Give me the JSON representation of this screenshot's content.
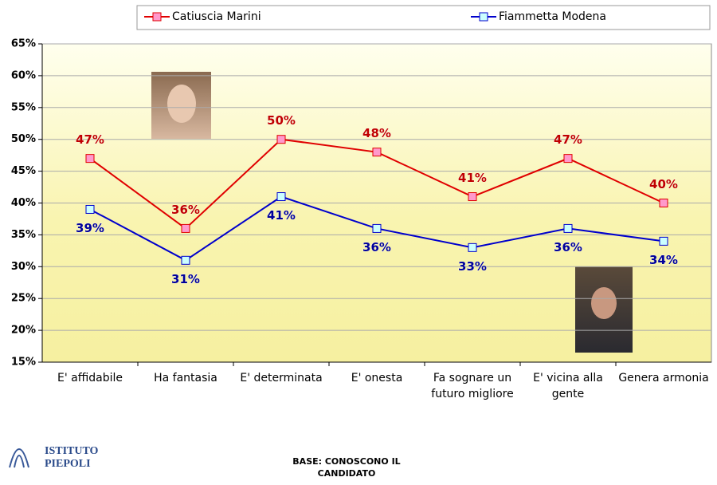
{
  "chart_data": {
    "type": "line",
    "categories": [
      "E' affidabile",
      "Ha fantasia",
      "E' determinata",
      "E' onesta",
      "Fa sognare un futuro migliore",
      "E' vicina alla gente",
      "Genera armonia"
    ],
    "series": [
      {
        "name": "Catiuscia Marini",
        "color": "#e00000",
        "marker_fill": "#ff99cc",
        "label_color": "#c00000",
        "values": [
          47,
          36,
          50,
          48,
          41,
          47,
          40
        ],
        "value_labels": [
          "47%",
          "36%",
          "50%",
          "48%",
          "41%",
          "47%",
          "40%"
        ]
      },
      {
        "name": "Fiammetta Modena",
        "color": "#0000cc",
        "marker_fill": "#ccffff",
        "label_color": "#000099",
        "values": [
          39,
          31,
          41,
          36,
          33,
          36,
          34
        ],
        "value_labels": [
          "39%",
          "31%",
          "41%",
          "36%",
          "33%",
          "36%",
          "34%"
        ]
      }
    ],
    "ylim": [
      15,
      65
    ],
    "yticks": [
      {
        "value": 15,
        "label": "15%"
      },
      {
        "value": 20,
        "label": "20%"
      },
      {
        "value": 25,
        "label": "25%"
      },
      {
        "value": 30,
        "label": "30%"
      },
      {
        "value": 35,
        "label": "35%"
      },
      {
        "value": 40,
        "label": "40%"
      },
      {
        "value": 45,
        "label": "45%"
      },
      {
        "value": 50,
        "label": "50%"
      },
      {
        "value": 55,
        "label": "55%"
      },
      {
        "value": 60,
        "label": "60%"
      },
      {
        "value": 65,
        "label": "65%"
      }
    ],
    "grid": true,
    "legend": "top"
  },
  "logo": [
    "ISTITUTO",
    "PIEPOLI"
  ],
  "footer": "BASE: CONOSCONO IL CANDIDATO"
}
